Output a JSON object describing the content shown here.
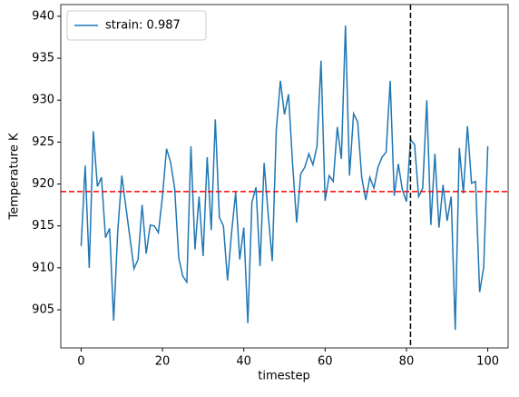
{
  "chart_data": {
    "type": "line",
    "xlabel": "timestep",
    "ylabel": "Temperature K",
    "x": [
      0,
      1,
      2,
      3,
      4,
      5,
      6,
      7,
      8,
      9,
      10,
      11,
      12,
      13,
      14,
      15,
      16,
      17,
      18,
      19,
      20,
      21,
      22,
      23,
      24,
      25,
      26,
      27,
      28,
      29,
      30,
      31,
      32,
      33,
      34,
      35,
      36,
      37,
      38,
      39,
      40,
      41,
      42,
      43,
      44,
      45,
      46,
      47,
      48,
      49,
      50,
      51,
      52,
      53,
      54,
      55,
      56,
      57,
      58,
      59,
      60,
      61,
      62,
      63,
      64,
      65,
      66,
      67,
      68,
      69,
      70,
      71,
      72,
      73,
      74,
      75,
      76,
      77,
      78,
      79,
      80,
      81,
      82,
      83,
      84,
      85,
      86,
      87,
      88,
      89,
      90,
      91,
      92,
      93,
      94,
      95,
      96,
      97,
      98,
      99,
      100
    ],
    "series": [
      {
        "name": "strain: 0.987",
        "color": "#1f77b4",
        "values": [
          912.6,
          922.2,
          910,
          926.3,
          919.7,
          920.8,
          913.6,
          914.7,
          903.7,
          914.3,
          921,
          917.3,
          913.6,
          909.9,
          911,
          917.5,
          911.7,
          915.1,
          915,
          914.2,
          918.5,
          924.2,
          922.6,
          919.5,
          911.2,
          909,
          908.3,
          924.5,
          912.2,
          918.5,
          911.4,
          923.2,
          914.5,
          927.7,
          916,
          915,
          908.5,
          914.2,
          919,
          911,
          914.8,
          903.4,
          917.8,
          919.6,
          910.2,
          922.5,
          916.4,
          910.8,
          926.5,
          932.3,
          928.3,
          930.7,
          922.4,
          915.4,
          921.2,
          922,
          923.6,
          922.3,
          924.5,
          934.7,
          918,
          921,
          920.3,
          926.8,
          923,
          938.9,
          921,
          928.4,
          927.4,
          920.8,
          918.1,
          920.8,
          919.5,
          922,
          923.2,
          923.8,
          932.3,
          918.6,
          922.4,
          919.3,
          917.9,
          925.3,
          924.7,
          918.5,
          919.5,
          930,
          915.1,
          923.6,
          914.8,
          919.9,
          915.6,
          918.5,
          902.6,
          924.3,
          918.9,
          926.9,
          920.1,
          920.3,
          907.1,
          910.1,
          924.5
        ]
      }
    ],
    "hline": {
      "value": 919.1,
      "color": "#ff0000"
    },
    "vline": {
      "value": 81,
      "color": "#000000"
    },
    "xlim": [
      -5,
      105
    ],
    "ylim": [
      900.45,
      941.4
    ],
    "xticks": [
      0,
      20,
      40,
      60,
      80,
      100
    ],
    "yticks": [
      905,
      910,
      915,
      920,
      925,
      930,
      935,
      940
    ],
    "legend": "upper left",
    "grid": false
  }
}
